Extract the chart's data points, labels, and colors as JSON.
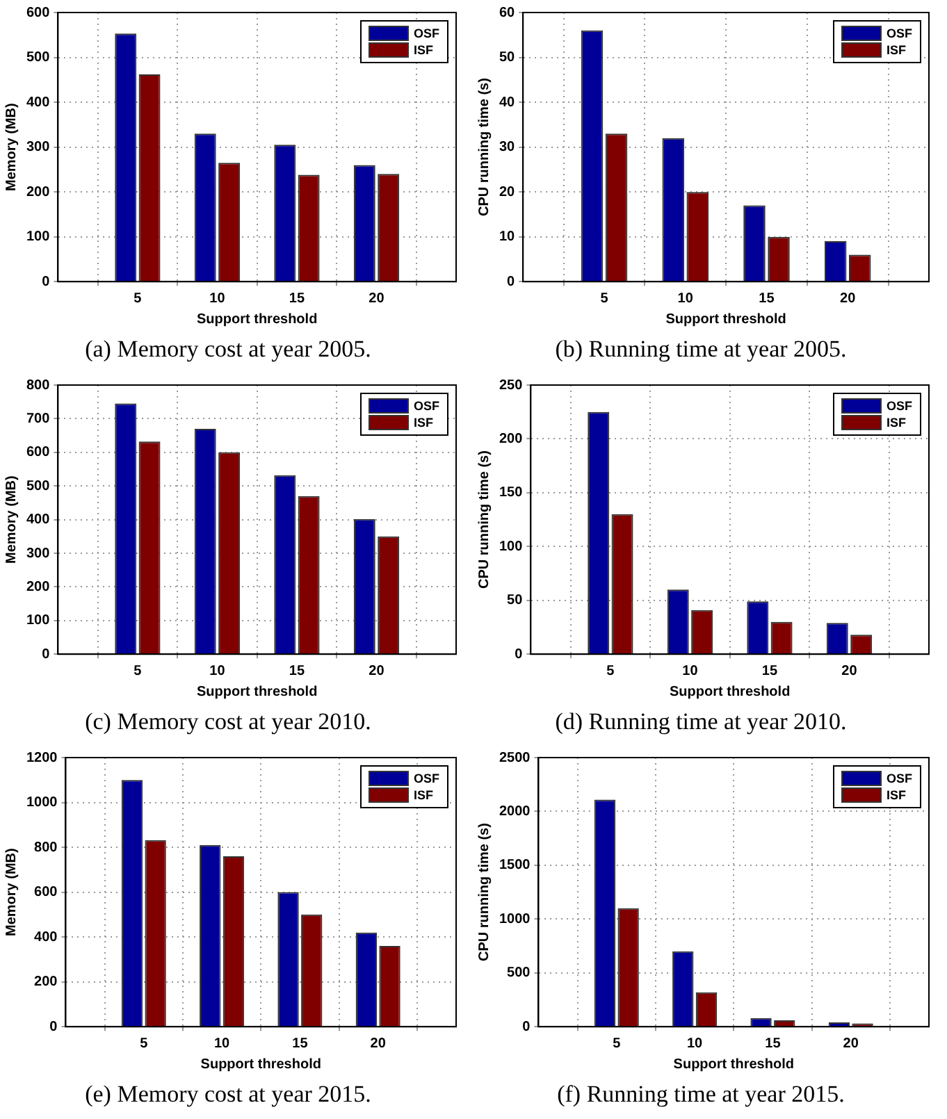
{
  "chart_data": [
    {
      "type": "bar",
      "title": "(a) Memory cost at year 2005.",
      "xlabel": "Support threshold",
      "ylabel": "Memory (MB)",
      "x": [
        5,
        10,
        15,
        20
      ],
      "xlim": [
        0,
        25
      ],
      "xticks": [
        5,
        10,
        15,
        20
      ],
      "ylim": [
        0,
        600
      ],
      "yticks": [
        0,
        100,
        200,
        300,
        400,
        500,
        600
      ],
      "grid": true,
      "legend": "top right",
      "series": [
        {
          "name": "OSF",
          "color": "#000099",
          "values": [
            553,
            330,
            305,
            260
          ]
        },
        {
          "name": "ISF",
          "color": "#800000",
          "values": [
            462,
            265,
            238,
            240
          ]
        }
      ]
    },
    {
      "type": "bar",
      "title": "(b) Running time at year 2005.",
      "xlabel": "Support threshold",
      "ylabel": "CPU running time (s)",
      "x": [
        5,
        10,
        15,
        20
      ],
      "xlim": [
        0,
        25
      ],
      "xticks": [
        5,
        10,
        15,
        20
      ],
      "ylim": [
        0,
        60
      ],
      "yticks": [
        0,
        10,
        20,
        30,
        40,
        50,
        60
      ],
      "grid": true,
      "legend": "top right",
      "series": [
        {
          "name": "OSF",
          "color": "#000099",
          "values": [
            56,
            32,
            17,
            9
          ]
        },
        {
          "name": "ISF",
          "color": "#800000",
          "values": [
            33,
            20,
            10,
            6
          ]
        }
      ]
    },
    {
      "type": "bar",
      "title": "(c) Memory cost at year 2010.",
      "xlabel": "Support threshold",
      "ylabel": "Memory (MB)",
      "x": [
        5,
        10,
        15,
        20
      ],
      "xlim": [
        0,
        25
      ],
      "xticks": [
        5,
        10,
        15,
        20
      ],
      "ylim": [
        0,
        800
      ],
      "yticks": [
        0,
        100,
        200,
        300,
        400,
        500,
        600,
        700,
        800
      ],
      "grid": true,
      "legend": "top right",
      "series": [
        {
          "name": "OSF",
          "color": "#000099",
          "values": [
            745,
            670,
            532,
            402
          ]
        },
        {
          "name": "ISF",
          "color": "#800000",
          "values": [
            632,
            600,
            470,
            350
          ]
        }
      ]
    },
    {
      "type": "bar",
      "title": "(d) Running time at year 2010.",
      "xlabel": "Support threshold",
      "ylabel": "CPU running time (s)",
      "x": [
        5,
        10,
        15,
        20
      ],
      "xlim": [
        0,
        25
      ],
      "xticks": [
        5,
        10,
        15,
        20
      ],
      "ylim": [
        0,
        250
      ],
      "yticks": [
        0,
        50,
        100,
        150,
        200,
        250
      ],
      "grid": true,
      "legend": "top right",
      "series": [
        {
          "name": "OSF",
          "color": "#000099",
          "values": [
            225,
            60,
            49,
            29
          ]
        },
        {
          "name": "ISF",
          "color": "#800000",
          "values": [
            130,
            41,
            30,
            18
          ]
        }
      ]
    },
    {
      "type": "bar",
      "title": "(e) Memory cost at year 2015.",
      "xlabel": "Support threshold",
      "ylabel": "Memory (MB)",
      "x": [
        5,
        10,
        15,
        20
      ],
      "xlim": [
        0,
        25
      ],
      "xticks": [
        5,
        10,
        15,
        20
      ],
      "ylim": [
        0,
        1200
      ],
      "yticks": [
        0,
        200,
        400,
        600,
        800,
        1000,
        1200
      ],
      "grid": true,
      "legend": "top right",
      "series": [
        {
          "name": "OSF",
          "color": "#000099",
          "values": [
            1100,
            810,
            600,
            420
          ]
        },
        {
          "name": "ISF",
          "color": "#800000",
          "values": [
            832,
            760,
            500,
            360
          ]
        }
      ]
    },
    {
      "type": "bar",
      "title": "(f) Running time at year 2015.",
      "xlabel": "Support threshold",
      "ylabel": "CPU running time (s)",
      "x": [
        5,
        10,
        15,
        20
      ],
      "xlim": [
        0,
        25
      ],
      "xticks": [
        5,
        10,
        15,
        20
      ],
      "ylim": [
        0,
        2500
      ],
      "yticks": [
        0,
        500,
        1000,
        1500,
        2000,
        2500
      ],
      "grid": true,
      "legend": "top right",
      "series": [
        {
          "name": "OSF",
          "color": "#000099",
          "values": [
            2110,
            700,
            80,
            40
          ]
        },
        {
          "name": "ISF",
          "color": "#800000",
          "values": [
            1100,
            320,
            60,
            30
          ]
        }
      ]
    }
  ]
}
